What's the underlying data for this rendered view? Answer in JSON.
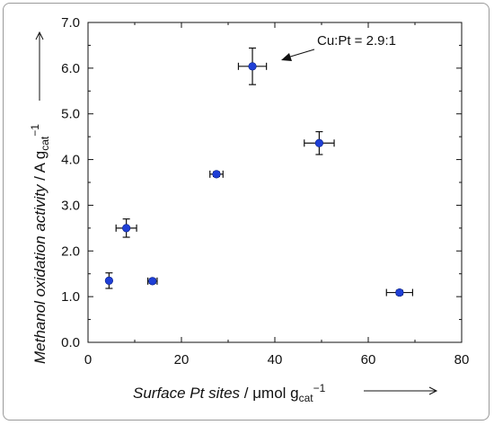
{
  "chart_data": {
    "type": "scatter",
    "title": "",
    "xlabel": {
      "italic": "Surface Pt sites",
      "unit": " / μmol g",
      "sub": "cat",
      "sup": "−1"
    },
    "ylabel": {
      "italic": "Methanol oxidation activity",
      "unit": " / A g",
      "sub": "cat",
      "sup": "−1"
    },
    "xlim": [
      0,
      80
    ],
    "ylim": [
      0,
      7
    ],
    "x_ticks": [
      "0",
      "20",
      "40",
      "60",
      "80"
    ],
    "y_ticks": [
      "0.0",
      "1.0",
      "2.0",
      "3.0",
      "4.0",
      "5.0",
      "6.0",
      "7.0"
    ],
    "grid": false,
    "points": [
      {
        "x": 4.5,
        "y": 1.35,
        "xerr": 0,
        "yerr": 0.17
      },
      {
        "x": 8.2,
        "y": 2.5,
        "xerr": 2.2,
        "yerr": 0.2
      },
      {
        "x": 13.8,
        "y": 1.34,
        "xerr": 1.0,
        "yerr": 0.05
      },
      {
        "x": 27.5,
        "y": 3.68,
        "xerr": 1.4,
        "yerr": 0.05
      },
      {
        "x": 35.2,
        "y": 6.04,
        "xerr": 3.0,
        "yerr": 0.4
      },
      {
        "x": 49.5,
        "y": 4.36,
        "xerr": 3.2,
        "yerr": 0.25
      },
      {
        "x": 66.7,
        "y": 1.09,
        "xerr": 2.8,
        "yerr": 0.05
      }
    ],
    "annotation": {
      "text": "Cu:Pt = 2.9:1"
    },
    "colors": {
      "marker": "#1f3fd6",
      "errorbar": "#111111",
      "axis": "#111111"
    }
  }
}
